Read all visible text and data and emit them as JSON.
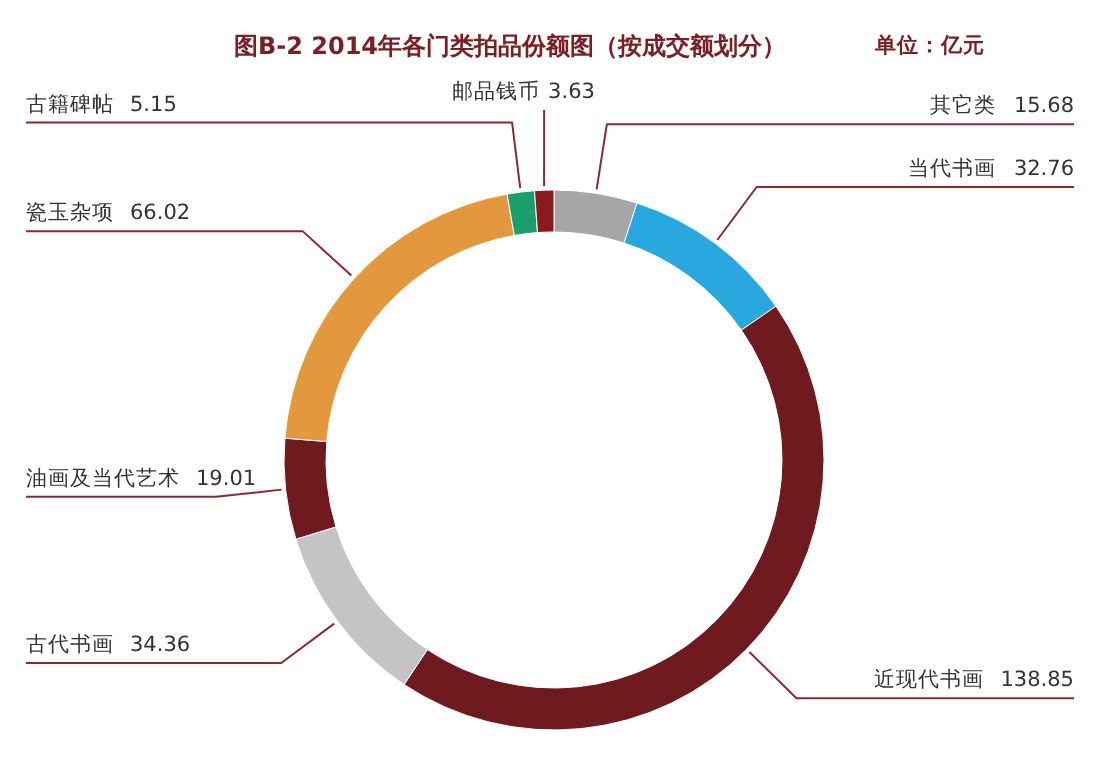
{
  "chart_data": {
    "type": "donut",
    "title": "图B-2  2014年各门类拍品份额图（按成交额划分）",
    "categories": [
      "其它类",
      "当代书画",
      "近现代书画",
      "古代书画",
      "油画及当代艺术",
      "瓷玉杂项",
      "古籍碑帖",
      "邮品钱币"
    ],
    "values": [
      15.68,
      32.76,
      138.85,
      34.36,
      19.01,
      66.02,
      5.15,
      3.63
    ],
    "colors": [
      "#a6a6a6",
      "#29a8e0",
      "#6e1a1f",
      "#c4c4c4",
      "#6e1a1f",
      "#e3983e",
      "#1a9e6e",
      "#8b1a1a"
    ],
    "data_labels": true,
    "annotations": [
      "单位：亿元"
    ]
  }
}
